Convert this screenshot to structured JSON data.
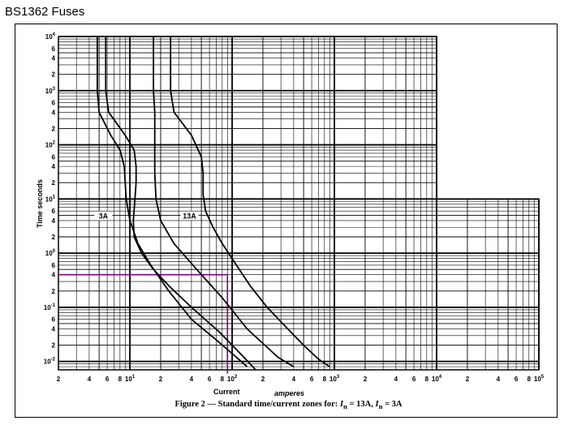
{
  "page_title": "BS1362 Fuses",
  "chart_data": {
    "type": "line",
    "title": "",
    "xlabel_parts": [
      "Current",
      "amperes"
    ],
    "ylabel": "Time   seconds",
    "x_scale": "log",
    "y_scale": "log",
    "xlim": [
      2,
      100000
    ],
    "ylim": [
      0.004,
      10000
    ],
    "x_tick_labels": [
      {
        "value": 2,
        "mant": "2",
        "exp": ""
      },
      {
        "value": 4,
        "mant": "4",
        "exp": ""
      },
      {
        "value": 6,
        "mant": "6",
        "exp": ""
      },
      {
        "value": 8,
        "mant": "8",
        "exp": ""
      },
      {
        "value": 10,
        "mant": "10",
        "exp": "1"
      },
      {
        "value": 20,
        "mant": "2",
        "exp": ""
      },
      {
        "value": 40,
        "mant": "4",
        "exp": ""
      },
      {
        "value": 60,
        "mant": "6",
        "exp": ""
      },
      {
        "value": 80,
        "mant": "8",
        "exp": ""
      },
      {
        "value": 100,
        "mant": "10",
        "exp": "2"
      },
      {
        "value": 200,
        "mant": "2",
        "exp": ""
      },
      {
        "value": 400,
        "mant": "4",
        "exp": ""
      },
      {
        "value": 600,
        "mant": "6",
        "exp": ""
      },
      {
        "value": 800,
        "mant": "8",
        "exp": ""
      },
      {
        "value": 1000,
        "mant": "10",
        "exp": "3"
      },
      {
        "value": 2000,
        "mant": "2",
        "exp": ""
      },
      {
        "value": 4000,
        "mant": "4",
        "exp": ""
      },
      {
        "value": 6000,
        "mant": "6",
        "exp": ""
      },
      {
        "value": 8000,
        "mant": "8",
        "exp": ""
      },
      {
        "value": 10000,
        "mant": "10",
        "exp": "4"
      },
      {
        "value": 20000,
        "mant": "2",
        "exp": ""
      },
      {
        "value": 40000,
        "mant": "4",
        "exp": ""
      },
      {
        "value": 60000,
        "mant": "6",
        "exp": ""
      },
      {
        "value": 80000,
        "mant": "8",
        "exp": ""
      },
      {
        "value": 100000,
        "mant": "10",
        "exp": "5"
      }
    ],
    "y_tick_labels": [
      {
        "value": 10000,
        "mant": "10",
        "exp": "4"
      },
      {
        "value": 6000,
        "mant": "6",
        "exp": ""
      },
      {
        "value": 4000,
        "mant": "4",
        "exp": ""
      },
      {
        "value": 2000,
        "mant": "2",
        "exp": ""
      },
      {
        "value": 1000,
        "mant": "10",
        "exp": "3"
      },
      {
        "value": 600,
        "mant": "6",
        "exp": ""
      },
      {
        "value": 400,
        "mant": "4",
        "exp": ""
      },
      {
        "value": 200,
        "mant": "2",
        "exp": ""
      },
      {
        "value": 100,
        "mant": "10",
        "exp": "2"
      },
      {
        "value": 60,
        "mant": "6",
        "exp": ""
      },
      {
        "value": 40,
        "mant": "4",
        "exp": ""
      },
      {
        "value": 20,
        "mant": "2",
        "exp": ""
      },
      {
        "value": 10,
        "mant": "10",
        "exp": "1"
      },
      {
        "value": 6,
        "mant": "6",
        "exp": ""
      },
      {
        "value": 4,
        "mant": "4",
        "exp": ""
      },
      {
        "value": 2,
        "mant": "2",
        "exp": ""
      },
      {
        "value": 1,
        "mant": "10",
        "exp": "0"
      },
      {
        "value": 0.6,
        "mant": "6",
        "exp": ""
      },
      {
        "value": 0.4,
        "mant": "4",
        "exp": ""
      },
      {
        "value": 0.2,
        "mant": "2",
        "exp": ""
      },
      {
        "value": 0.1,
        "mant": "10",
        "exp": "-1"
      },
      {
        "value": 0.06,
        "mant": "6",
        "exp": ""
      },
      {
        "value": 0.04,
        "mant": "4",
        "exp": ""
      },
      {
        "value": 0.02,
        "mant": "2",
        "exp": ""
      },
      {
        "value": 0.01,
        "mant": "10",
        "exp": "-2"
      }
    ],
    "grid": true,
    "blank_region": {
      "x_from": 10000,
      "y_from": 10
    },
    "series": [
      {
        "name": "3A",
        "label_at": {
          "x": 5.6,
          "y": 4.5
        },
        "color": "#000000",
        "points": [
          [
            4.8,
            10000
          ],
          [
            4.8,
            1000
          ],
          [
            5.0,
            400
          ],
          [
            6.5,
            150
          ],
          [
            8.0,
            80
          ],
          [
            8.8,
            40
          ],
          [
            9.0,
            20
          ],
          [
            9.2,
            10
          ],
          [
            10,
            4
          ],
          [
            12,
            1.5
          ],
          [
            16,
            0.6
          ],
          [
            24,
            0.2
          ],
          [
            40,
            0.06
          ],
          [
            70,
            0.025
          ],
          [
            110,
            0.012
          ],
          [
            140,
            0.008
          ]
        ]
      },
      {
        "name": "3A",
        "label_at": {
          "x": 5.6,
          "y": 4.5
        },
        "color": "#000000",
        "points": [
          [
            5.8,
            10000
          ],
          [
            5.8,
            1000
          ],
          [
            6.2,
            400
          ],
          [
            9.0,
            150
          ],
          [
            11,
            80
          ],
          [
            11.5,
            40
          ],
          [
            11.5,
            20
          ],
          [
            11.2,
            10
          ],
          [
            10.8,
            4
          ],
          [
            11,
            2
          ],
          [
            13,
            1
          ],
          [
            17,
            0.5
          ],
          [
            24,
            0.25
          ],
          [
            40,
            0.1
          ],
          [
            75,
            0.035
          ],
          [
            130,
            0.012
          ],
          [
            170,
            0.007
          ]
        ]
      },
      {
        "name": "13A",
        "label_at": {
          "x": 39,
          "y": 4.5
        },
        "color": "#000000",
        "points": [
          [
            25,
            10000
          ],
          [
            25,
            1000
          ],
          [
            27,
            400
          ],
          [
            40,
            150
          ],
          [
            50,
            60
          ],
          [
            52,
            30
          ],
          [
            52,
            12
          ],
          [
            55,
            6
          ],
          [
            65,
            3
          ],
          [
            80,
            1.5
          ],
          [
            110,
            0.6
          ],
          [
            150,
            0.25
          ],
          [
            220,
            0.1
          ],
          [
            350,
            0.04
          ],
          [
            500,
            0.02
          ],
          [
            700,
            0.011
          ],
          [
            900,
            0.008
          ]
        ]
      },
      {
        "name": "13A",
        "label_at": {
          "x": 39,
          "y": 4.5
        },
        "color": "#000000",
        "points": [
          [
            17,
            10000
          ],
          [
            17,
            1000
          ],
          [
            17.5,
            400
          ],
          [
            17.5,
            100
          ],
          [
            17.5,
            30
          ],
          [
            18,
            10
          ],
          [
            20,
            4
          ],
          [
            27,
            1.5
          ],
          [
            45,
            0.5
          ],
          [
            80,
            0.15
          ],
          [
            140,
            0.04
          ],
          [
            280,
            0.012
          ],
          [
            400,
            0.008
          ]
        ]
      }
    ],
    "annotation_lines": [
      {
        "color": "#800080",
        "points": [
          [
            2,
            0.4
          ],
          [
            90,
            0.4
          ],
          [
            90,
            0.006
          ]
        ]
      }
    ]
  },
  "caption": {
    "lead": "Figure 2 — Standard time/current zones for: ",
    "i": "I",
    "n": "n",
    "rated1": " = 13A, ",
    "rated2": " = 3A"
  }
}
